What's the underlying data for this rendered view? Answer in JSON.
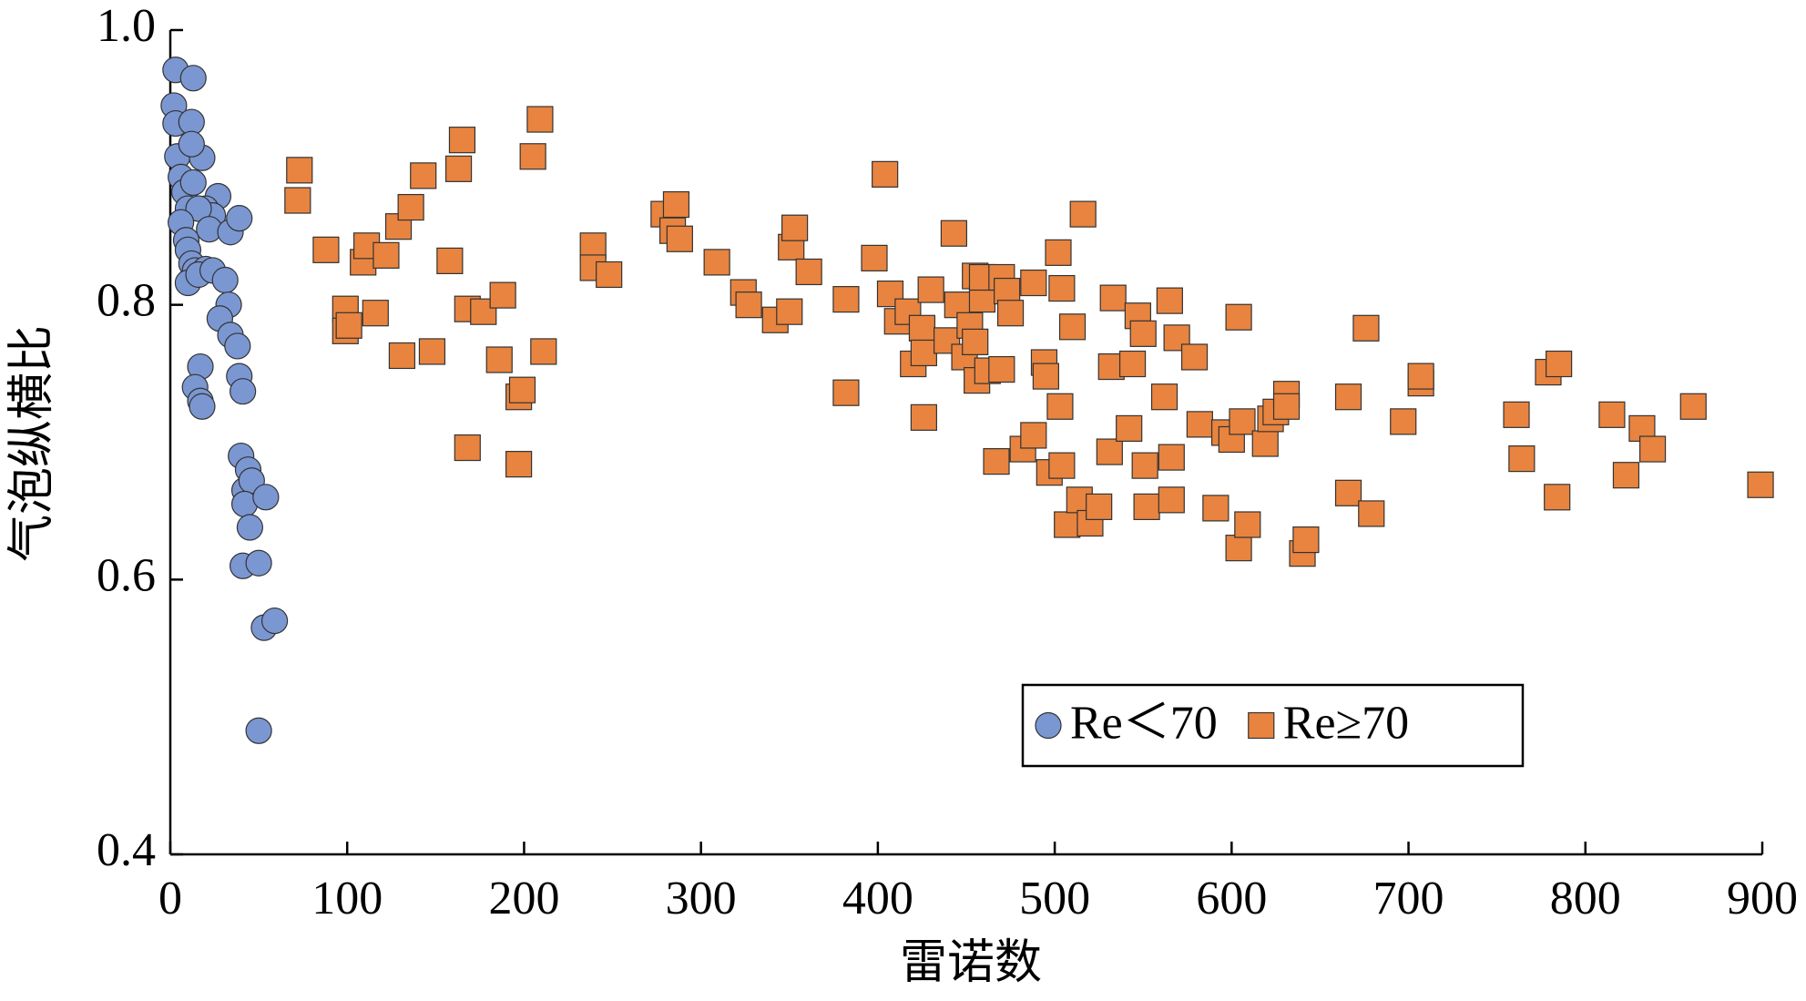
{
  "chart_data": {
    "type": "scatter",
    "x_label": "雷诺数",
    "y_label": "气泡纵横比",
    "xlim": [
      0,
      900
    ],
    "xticks": [
      0,
      100,
      200,
      300,
      400,
      500,
      600,
      700,
      800,
      900
    ],
    "ylim": [
      0.4,
      1.0
    ],
    "yticks": [
      0.4,
      0.6,
      0.8,
      {
        "value": 1.0,
        "label": "1.0"
      }
    ],
    "grid": false,
    "legend": "lower right",
    "series": [
      {
        "name": "Re＜70",
        "color": "#7b97d2",
        "marker": "circle",
        "x": [
          3,
          13,
          2,
          3,
          12,
          4,
          6,
          18,
          12,
          8,
          10,
          13,
          27,
          20,
          24,
          16,
          6,
          22,
          34,
          39,
          9,
          10,
          12,
          14,
          20,
          10,
          16,
          24,
          31,
          33,
          28,
          34,
          38,
          39,
          41,
          17,
          14,
          17,
          18,
          40,
          44,
          42,
          46,
          42,
          54,
          45,
          41,
          50,
          53,
          59,
          50
        ],
        "y": [
          0.971,
          0.965,
          0.945,
          0.932,
          0.933,
          0.908,
          0.893,
          0.907,
          0.917,
          0.882,
          0.87,
          0.889,
          0.879,
          0.87,
          0.865,
          0.87,
          0.86,
          0.855,
          0.853,
          0.863,
          0.847,
          0.84,
          0.83,
          0.825,
          0.826,
          0.816,
          0.822,
          0.825,
          0.818,
          0.8,
          0.79,
          0.778,
          0.77,
          0.748,
          0.737,
          0.755,
          0.74,
          0.73,
          0.726,
          0.69,
          0.68,
          0.665,
          0.672,
          0.655,
          0.66,
          0.638,
          0.61,
          0.612,
          0.565,
          0.57,
          0.49
        ]
      },
      {
        "name": "Re≥70",
        "color": "#e8843f",
        "marker": "square",
        "x": [
          73,
          72,
          88,
          99,
          99,
          101,
          109,
          111,
          116,
          122,
          129,
          131,
          136,
          143,
          148,
          158,
          163,
          165,
          168,
          168,
          177,
          186,
          188,
          197,
          197,
          199,
          205,
          209,
          211,
          239,
          239,
          248,
          279,
          284,
          286,
          288,
          309,
          324,
          327,
          342,
          350,
          351,
          353,
          361,
          382,
          382,
          398,
          404,
          407,
          411,
          417,
          420,
          425,
          426,
          426,
          430,
          439,
          443,
          445,
          449,
          452,
          455,
          455,
          456,
          459,
          459,
          462,
          467,
          470,
          470,
          473,
          475,
          482,
          488,
          488,
          494,
          495,
          497,
          502,
          503,
          504,
          504,
          507,
          510,
          514,
          516,
          520,
          525,
          531,
          532,
          533,
          542,
          544,
          547,
          550,
          551,
          552,
          562,
          565,
          566,
          566,
          569,
          579,
          582,
          591,
          596,
          600,
          604,
          604,
          606,
          609,
          619,
          622,
          625,
          631,
          631,
          640,
          642,
          666,
          666,
          676,
          679,
          697,
          707,
          707,
          761,
          764,
          779,
          784,
          785,
          815,
          823,
          832,
          838,
          861,
          899
        ],
        "y": [
          0.898,
          0.876,
          0.84,
          0.797,
          0.781,
          0.785,
          0.831,
          0.843,
          0.794,
          0.836,
          0.857,
          0.763,
          0.871,
          0.894,
          0.766,
          0.832,
          0.899,
          0.92,
          0.797,
          0.696,
          0.795,
          0.76,
          0.807,
          0.733,
          0.684,
          0.738,
          0.908,
          0.935,
          0.766,
          0.843,
          0.827,
          0.822,
          0.866,
          0.854,
          0.873,
          0.848,
          0.831,
          0.809,
          0.8,
          0.789,
          0.795,
          0.842,
          0.856,
          0.824,
          0.804,
          0.736,
          0.834,
          0.895,
          0.808,
          0.788,
          0.795,
          0.757,
          0.783,
          0.765,
          0.718,
          0.811,
          0.774,
          0.852,
          0.8,
          0.762,
          0.785,
          0.821,
          0.773,
          0.745,
          0.804,
          0.82,
          0.752,
          0.686,
          0.82,
          0.753,
          0.81,
          0.794,
          0.695,
          0.705,
          0.816,
          0.758,
          0.748,
          0.678,
          0.838,
          0.726,
          0.812,
          0.683,
          0.64,
          0.784,
          0.658,
          0.866,
          0.641,
          0.653,
          0.693,
          0.755,
          0.805,
          0.71,
          0.757,
          0.792,
          0.779,
          0.683,
          0.653,
          0.733,
          0.803,
          0.689,
          0.658,
          0.776,
          0.762,
          0.713,
          0.652,
          0.707,
          0.702,
          0.791,
          0.623,
          0.715,
          0.64,
          0.699,
          0.717,
          0.722,
          0.735,
          0.726,
          0.619,
          0.629,
          0.733,
          0.663,
          0.783,
          0.648,
          0.715,
          0.743,
          0.748,
          0.72,
          0.688,
          0.751,
          0.66,
          0.757,
          0.72,
          0.676,
          0.71,
          0.695,
          0.726,
          0.669
        ]
      }
    ]
  }
}
